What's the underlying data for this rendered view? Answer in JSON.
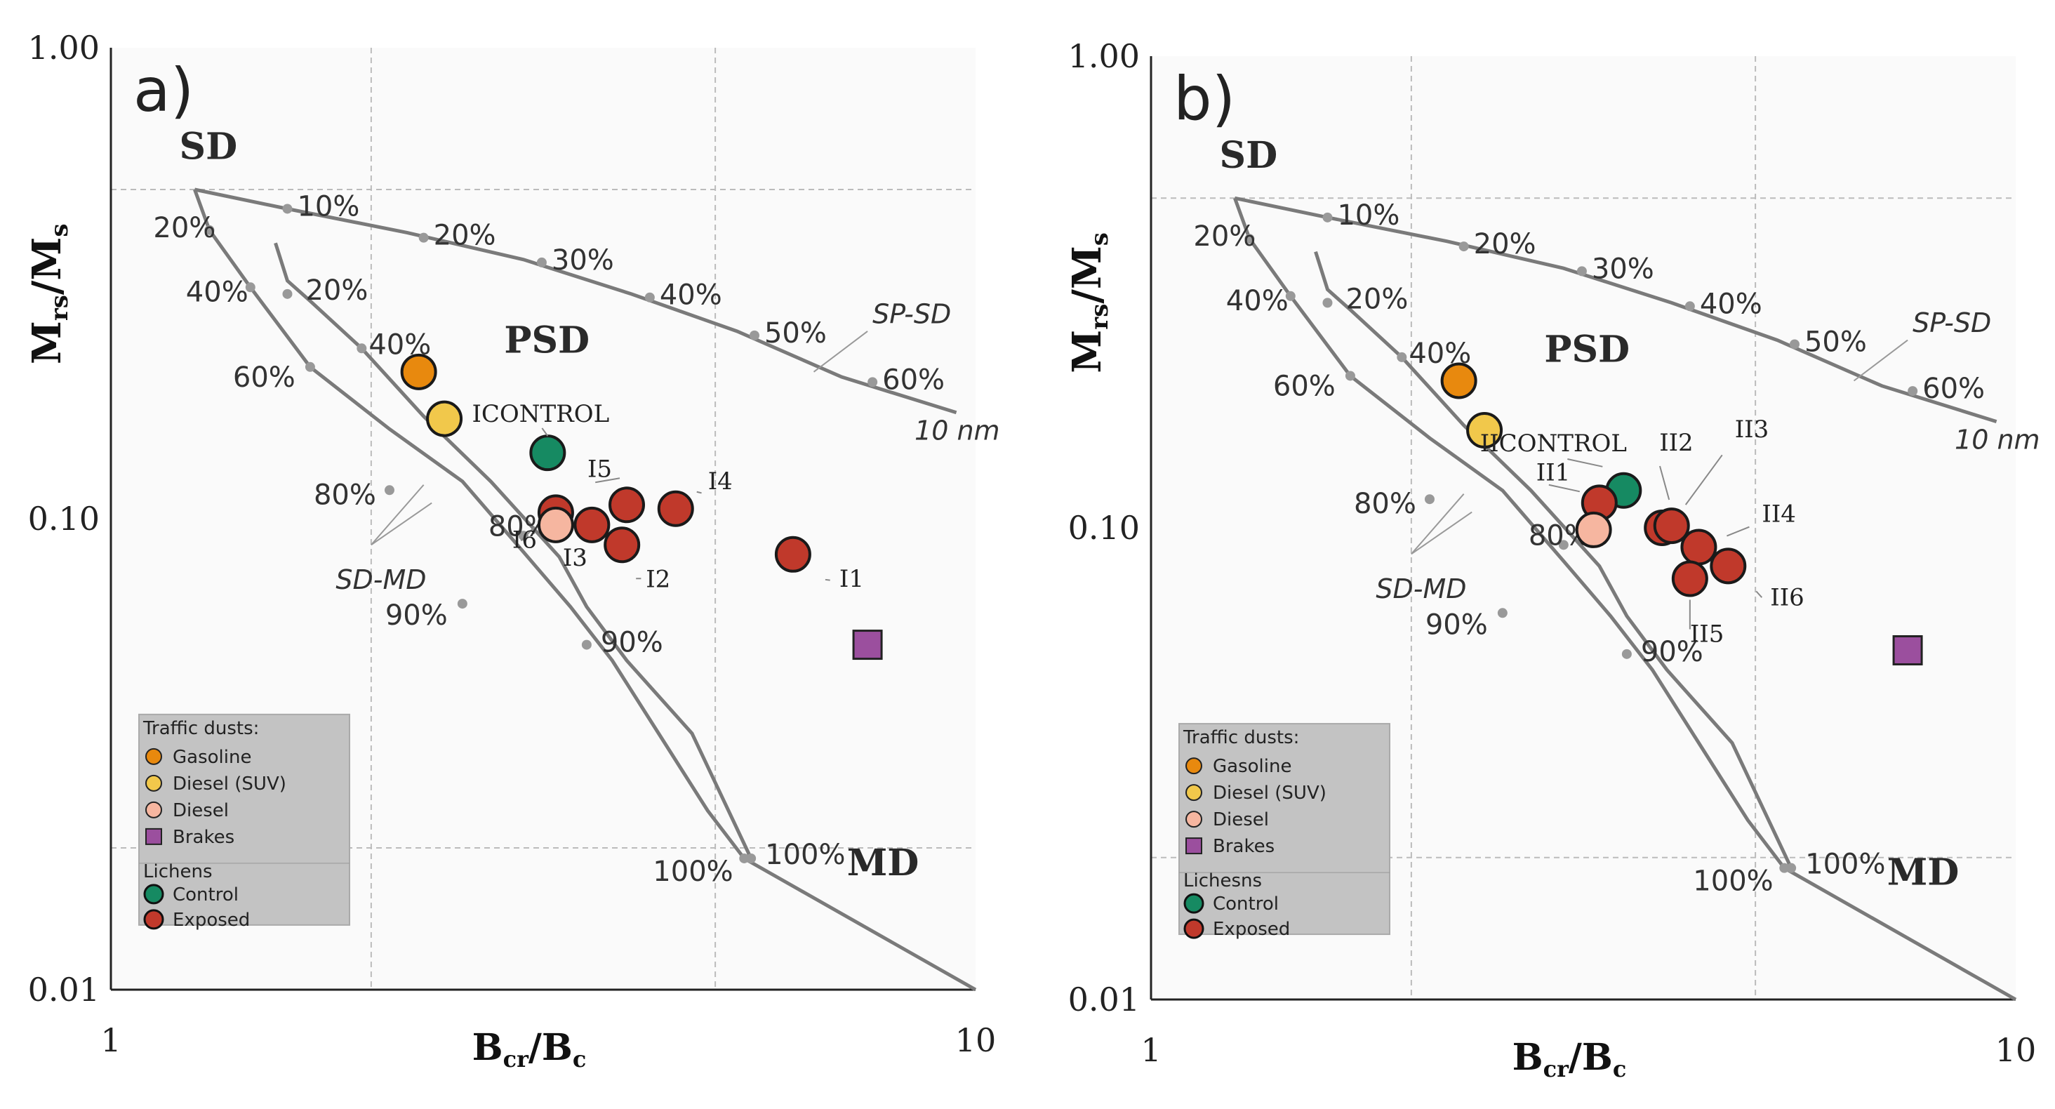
{
  "colors": {
    "gasoline": "#E8890E",
    "diesel_suv": "#F1C84B",
    "diesel": "#F6B6A0",
    "brakes": "#9B4F9E",
    "control": "#168A62",
    "exposed": "#C0392B",
    "curve": "#7a7a7a",
    "grid": "#bbbbbb",
    "legend_bg": "#c3c3c3",
    "plot_bg": "#fafafa"
  },
  "chart_data": [
    {
      "type": "scatter",
      "panel_label": "a)",
      "xscale": "log",
      "yscale": "log",
      "xlim": [
        1,
        10
      ],
      "ylim": [
        0.01,
        1.0
      ],
      "xlabel": "Bcr/Bc",
      "ylabel": "Mrs/Ms",
      "xtick_labels": [
        "1",
        "10"
      ],
      "ytick_labels": [
        "1.00",
        "0.10",
        "0.01"
      ],
      "region_labels": {
        "sd": "SD",
        "psd": "PSD",
        "md": "MD"
      },
      "curve_labels": {
        "sp_sd": "SP-SD",
        "nm": "10 nm",
        "sd_md": "SD-MD"
      },
      "curve_pct_labels": {
        "sp_sd": [
          "10%",
          "20%",
          "30%",
          "40%",
          "50%",
          "60%"
        ],
        "sd_md_1": [
          "20%",
          "40%",
          "60%",
          "80%",
          "90%",
          "100%"
        ],
        "sd_md_2": [
          "20%",
          "40%",
          "80%",
          "90%",
          "100%"
        ]
      },
      "points": [
        {
          "name": "Gasoline",
          "group": "gasoline",
          "x": 2.27,
          "y": 0.205,
          "label": ""
        },
        {
          "name": "Diesel (SUV)",
          "group": "diesel_suv",
          "x": 2.43,
          "y": 0.163,
          "label": ""
        },
        {
          "name": "ICONTROL",
          "group": "control",
          "x": 3.2,
          "y": 0.138,
          "label": "ICONTROL"
        },
        {
          "name": "I1",
          "group": "exposed",
          "x": 6.15,
          "y": 0.084,
          "label": "I1"
        },
        {
          "name": "I2",
          "group": "exposed",
          "x": 3.9,
          "y": 0.088,
          "label": "I2"
        },
        {
          "name": "I3",
          "group": "exposed",
          "x": 3.6,
          "y": 0.097,
          "label": "I3"
        },
        {
          "name": "I4",
          "group": "exposed",
          "x": 4.5,
          "y": 0.105,
          "label": "I4"
        },
        {
          "name": "I5",
          "group": "exposed",
          "x": 3.95,
          "y": 0.107,
          "label": "I5"
        },
        {
          "name": "I6",
          "group": "exposed",
          "x": 3.27,
          "y": 0.103,
          "label": "I6"
        },
        {
          "name": "Diesel",
          "group": "diesel",
          "x": 3.27,
          "y": 0.097,
          "label": ""
        },
        {
          "name": "Brakes",
          "group": "brakes",
          "x": 7.5,
          "y": 0.054,
          "label": ""
        }
      ],
      "legend": {
        "traffic_title": "Traffic dusts:",
        "traffic_items": [
          {
            "group": "gasoline",
            "label": "Gasoline",
            "shape": "circle"
          },
          {
            "group": "diesel_suv",
            "label": "Diesel (SUV)",
            "shape": "circle"
          },
          {
            "group": "diesel",
            "label": "Diesel",
            "shape": "circle"
          },
          {
            "group": "brakes",
            "label": "Brakes",
            "shape": "square"
          }
        ],
        "lichen_title": "Lichens",
        "lichen_items": [
          {
            "group": "control",
            "label": "Control",
            "shape": "circle"
          },
          {
            "group": "exposed",
            "label": "Exposed",
            "shape": "circle"
          }
        ]
      }
    },
    {
      "type": "scatter",
      "panel_label": "b)",
      "xscale": "log",
      "yscale": "log",
      "xlim": [
        1,
        10
      ],
      "ylim": [
        0.01,
        1.0
      ],
      "xlabel": "Bcr/Bc",
      "ylabel": "Mrs/Ms",
      "xtick_labels": [
        "1",
        "10"
      ],
      "ytick_labels": [
        "1.00",
        "0.10",
        "0.01"
      ],
      "region_labels": {
        "sd": "SD",
        "psd": "PSD",
        "md": "MD"
      },
      "curve_labels": {
        "sp_sd": "SP-SD",
        "nm": "10 nm",
        "sd_md": "SD-MD"
      },
      "curve_pct_labels": {
        "sp_sd": [
          "10%",
          "20%",
          "30%",
          "40%",
          "50%",
          "60%"
        ],
        "sd_md_1": [
          "20%",
          "40%",
          "60%",
          "80%",
          "90%",
          "100%"
        ],
        "sd_md_2": [
          "20%",
          "40%",
          "80%",
          "90%",
          "100%"
        ]
      },
      "points": [
        {
          "name": "Gasoline",
          "group": "gasoline",
          "x": 2.27,
          "y": 0.205,
          "label": ""
        },
        {
          "name": "Diesel (SUV)",
          "group": "diesel_suv",
          "x": 2.43,
          "y": 0.161,
          "label": ""
        },
        {
          "name": "IICONTROL",
          "group": "control",
          "x": 3.52,
          "y": 0.12,
          "label": "IICONTROL"
        },
        {
          "name": "II1",
          "group": "exposed",
          "x": 3.3,
          "y": 0.113,
          "label": "II1"
        },
        {
          "name": "Diesel",
          "group": "diesel",
          "x": 3.25,
          "y": 0.099,
          "label": ""
        },
        {
          "name": "II2",
          "group": "exposed",
          "x": 3.9,
          "y": 0.1,
          "label": "II2"
        },
        {
          "name": "II3",
          "group": "exposed",
          "x": 4.0,
          "y": 0.101,
          "label": "II3"
        },
        {
          "name": "II4",
          "group": "exposed",
          "x": 4.3,
          "y": 0.091,
          "label": "II4"
        },
        {
          "name": "II5",
          "group": "exposed",
          "x": 4.2,
          "y": 0.078,
          "label": "II5"
        },
        {
          "name": "II6",
          "group": "exposed",
          "x": 4.65,
          "y": 0.083,
          "label": "II6"
        },
        {
          "name": "Brakes",
          "group": "brakes",
          "x": 7.5,
          "y": 0.055,
          "label": ""
        }
      ],
      "legend": {
        "traffic_title": "Traffic dusts:",
        "traffic_items": [
          {
            "group": "gasoline",
            "label": "Gasoline",
            "shape": "circle"
          },
          {
            "group": "diesel_suv",
            "label": "Diesel (SUV)",
            "shape": "circle"
          },
          {
            "group": "diesel",
            "label": "Diesel",
            "shape": "circle"
          },
          {
            "group": "brakes",
            "label": "Brakes",
            "shape": "square"
          }
        ],
        "lichen_title": "Lichesns",
        "lichen_items": [
          {
            "group": "control",
            "label": "Control",
            "shape": "circle"
          },
          {
            "group": "exposed",
            "label": "Exposed",
            "shape": "circle"
          }
        ]
      }
    }
  ]
}
